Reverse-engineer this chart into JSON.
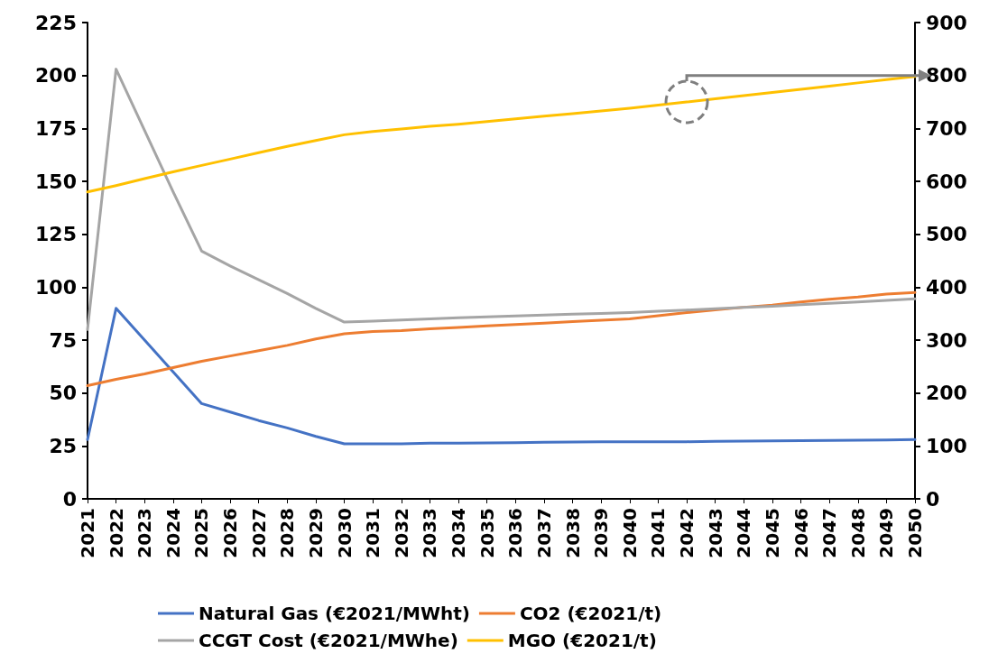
{
  "chart_data": {
    "type": "line",
    "categories": [
      "2021",
      "2022",
      "2023",
      "2024",
      "2025",
      "2026",
      "2027",
      "2028",
      "2029",
      "2030",
      "2031",
      "2032",
      "2033",
      "2034",
      "2035",
      "2036",
      "2037",
      "2038",
      "2039",
      "2040",
      "2041",
      "2042",
      "2043",
      "2044",
      "2045",
      "2046",
      "2047",
      "2048",
      "2049",
      "2050"
    ],
    "series": [
      {
        "name": "Natural Gas (€2021/MWht)",
        "color": "#4472c4",
        "values": [
          28,
          90,
          75,
          60,
          45,
          41,
          37,
          33.5,
          29.5,
          26,
          26,
          26,
          26.3,
          26.3,
          26.4,
          26.5,
          26.7,
          26.8,
          27,
          27,
          27,
          27,
          27.2,
          27.3,
          27.4,
          27.5,
          27.6,
          27.7,
          27.8,
          28
        ]
      },
      {
        "name": "CO2 (€2021/t)",
        "color": "#ed7d31",
        "values": [
          53.5,
          56.5,
          59,
          62,
          65,
          67.5,
          70,
          72.5,
          75.5,
          78,
          79,
          79.5,
          80.3,
          81,
          81.7,
          82.3,
          83,
          83.7,
          84.4,
          85,
          86.5,
          88,
          89.3,
          90.5,
          91.5,
          93,
          94.3,
          95.3,
          96.7,
          97.5
        ]
      },
      {
        "name": "CCGT Cost (€2021/MWhe)",
        "color": "#a5a5a5",
        "values": [
          80,
          203,
          174,
          145,
          117,
          110,
          103.5,
          97,
          90,
          83.5,
          84,
          84.5,
          85,
          85.5,
          86,
          86.4,
          86.8,
          87.2,
          87.6,
          88,
          88.6,
          89.2,
          89.8,
          90.4,
          91,
          91.7,
          92.4,
          93,
          93.8,
          94.5
        ]
      },
      {
        "name": "MGO (€2021/t)",
        "color": "#ffc000",
        "axis": "y2",
        "values": [
          580,
          592,
          605,
          618,
          630,
          642,
          654,
          666,
          677,
          688,
          694,
          699,
          704,
          708,
          713,
          718,
          723,
          728,
          733,
          738,
          744,
          750,
          756,
          762,
          768,
          774,
          780,
          786,
          792,
          798
        ]
      }
    ],
    "ylim": [
      0,
      225
    ],
    "yticks": [
      0,
      25,
      50,
      75,
      100,
      125,
      150,
      175,
      200,
      225
    ],
    "y2lim": [
      0,
      900
    ],
    "y2ticks": [
      0,
      100,
      200,
      300,
      400,
      500,
      600,
      700,
      800,
      900
    ],
    "grid": false,
    "legend": "bottom",
    "marker": "none",
    "line_style": "solid"
  }
}
